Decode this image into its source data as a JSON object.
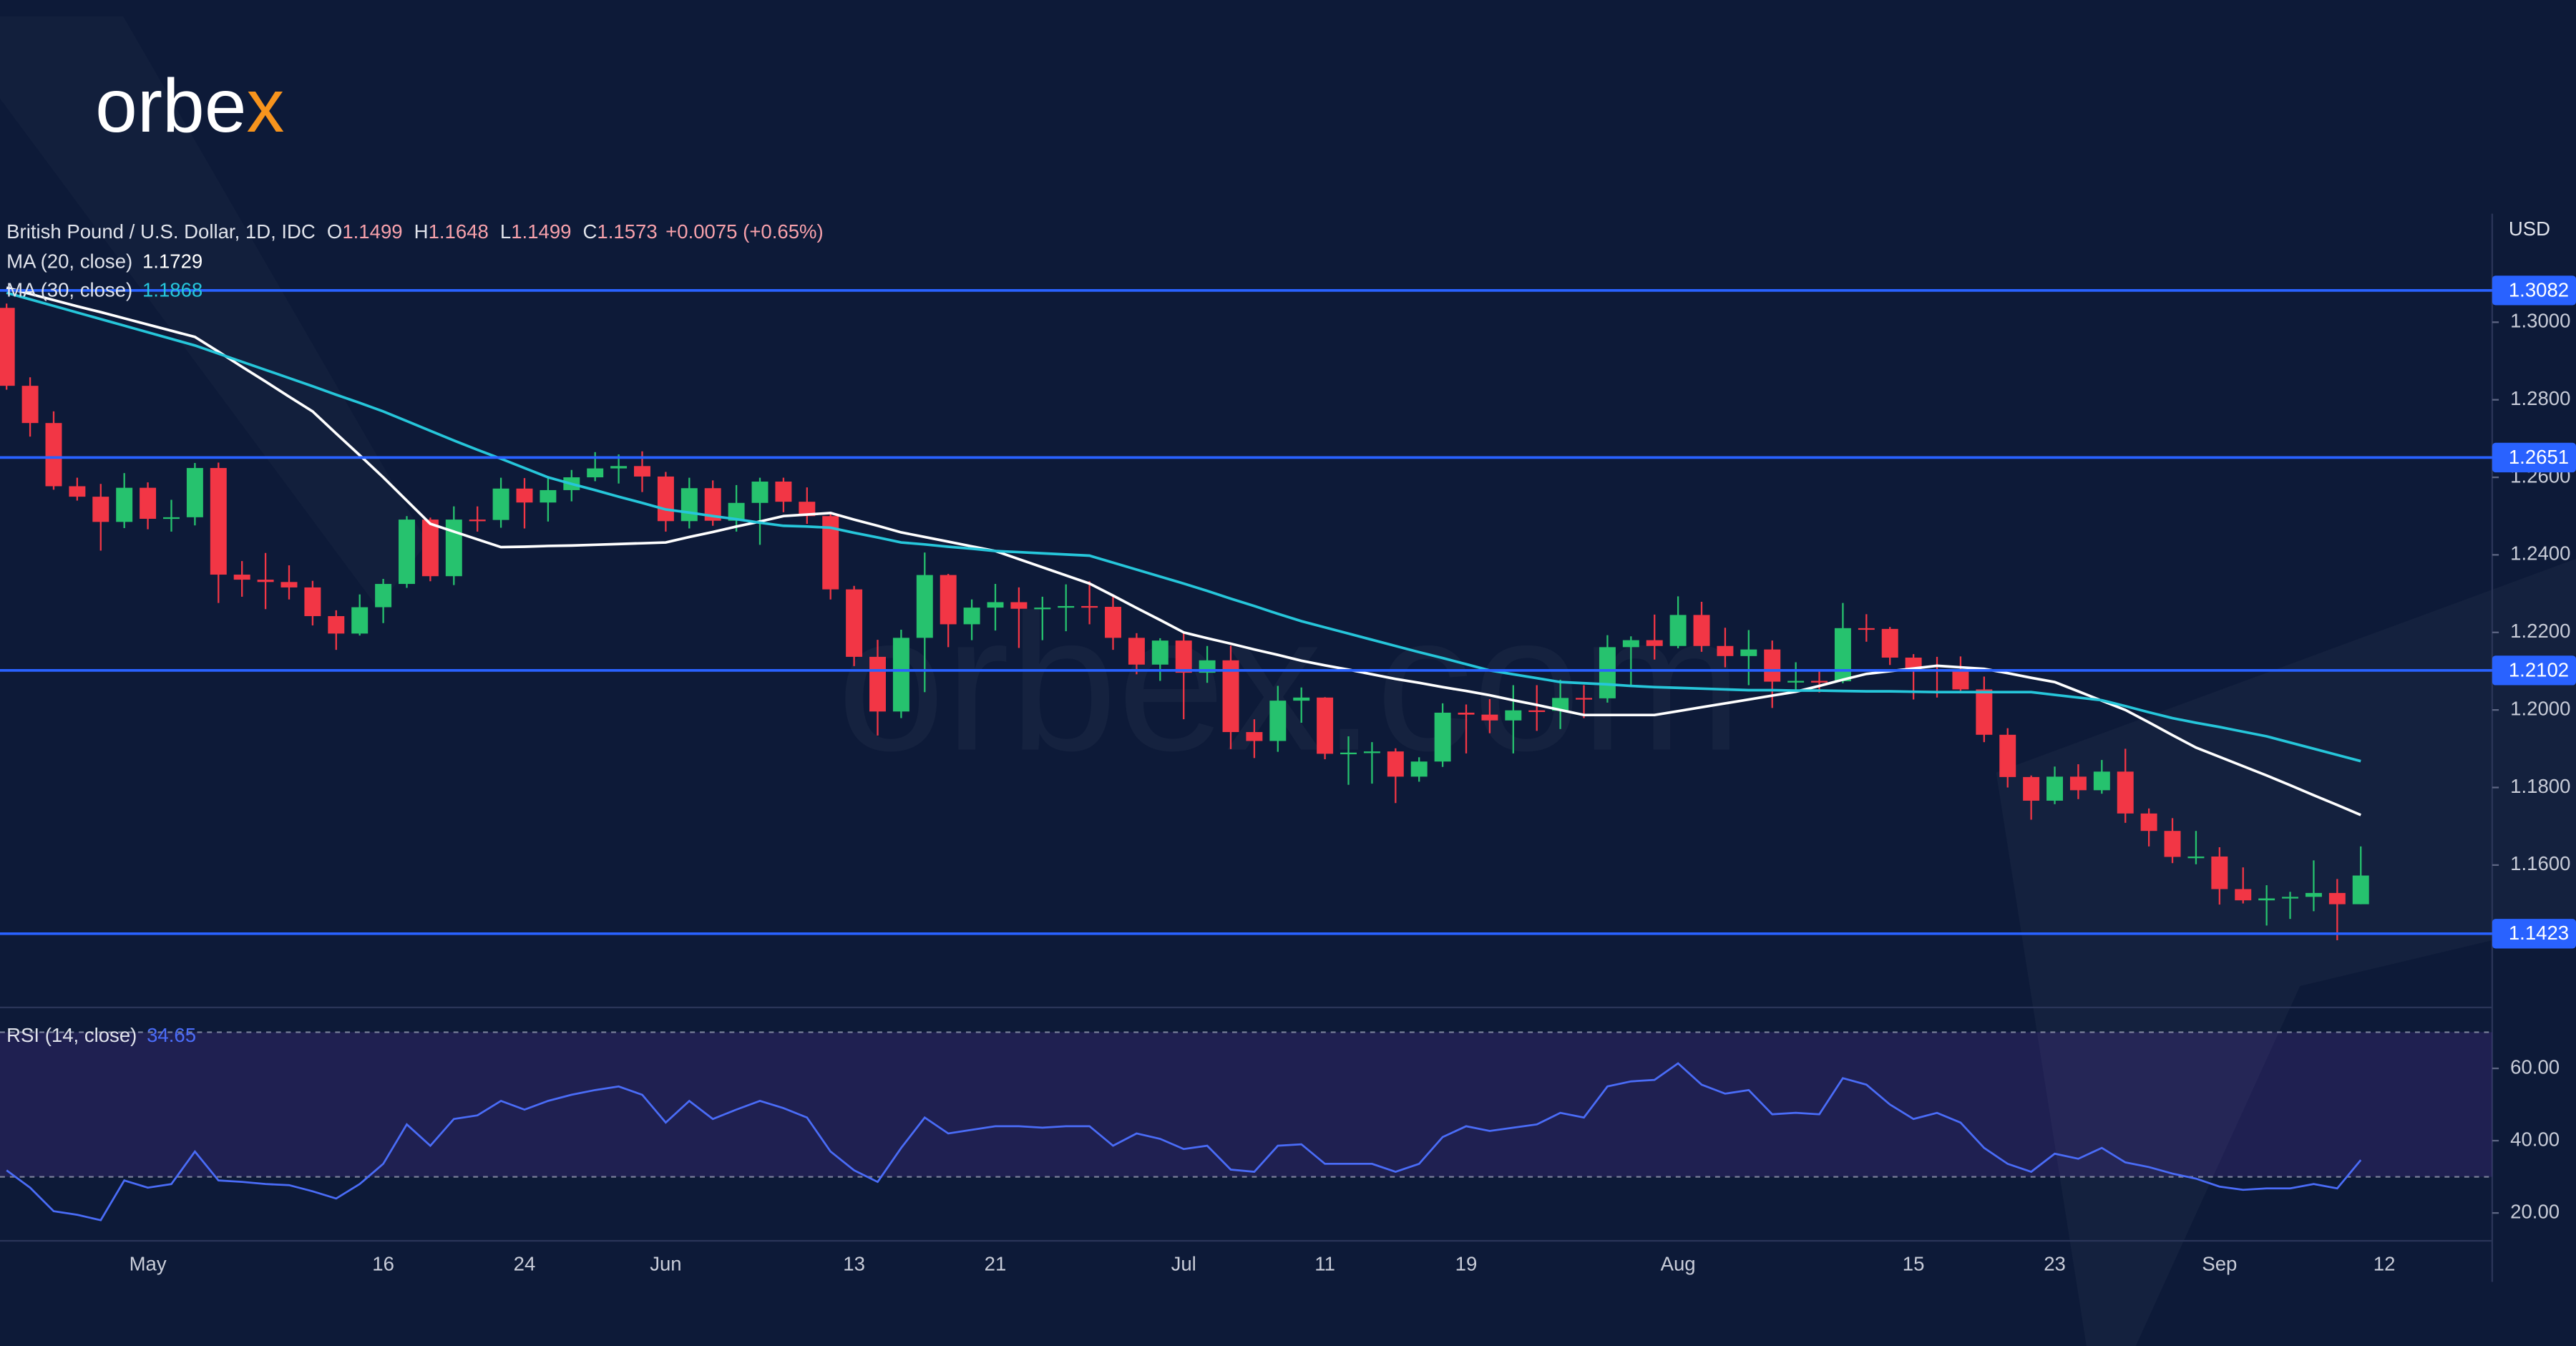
{
  "logo": {
    "text": "orbe",
    "accent": "x"
  },
  "watermark": "orbex.com",
  "chart_data": {
    "type": "candlestick",
    "legend": {
      "symbol": "British Pound / U.S. Dollar, 1D, IDC",
      "ohlc": [
        {
          "label": "O",
          "value": "1.1499"
        },
        {
          "label": "H",
          "value": "1.1648"
        },
        {
          "label": "L",
          "value": "1.1499"
        },
        {
          "label": "C",
          "value": "1.1573"
        }
      ],
      "change": "+0.0075 (+0.65%)"
    },
    "currency": "USD",
    "categories": [
      null,
      null,
      null,
      null,
      null,
      null,
      "May",
      null,
      null,
      null,
      null,
      null,
      null,
      null,
      null,
      null,
      "16",
      null,
      null,
      null,
      null,
      null,
      "24",
      null,
      null,
      null,
      null,
      null,
      "Jun",
      null,
      null,
      null,
      null,
      null,
      null,
      null,
      "13",
      null,
      null,
      null,
      null,
      null,
      "21",
      null,
      null,
      null,
      null,
      null,
      null,
      null,
      "Jul",
      null,
      null,
      null,
      null,
      null,
      "11",
      null,
      null,
      null,
      null,
      null,
      "19",
      null,
      null,
      null,
      null,
      null,
      null,
      null,
      null,
      "Aug",
      null,
      null,
      null,
      null,
      null,
      null,
      null,
      null,
      null,
      "15",
      null,
      null,
      null,
      null,
      null,
      "23",
      null,
      null,
      null,
      null,
      null,
      null,
      "Sep",
      null,
      null,
      null,
      null,
      null,
      null,
      "12"
    ],
    "open": [
      1.3037,
      1.2836,
      1.274,
      1.2577,
      1.255,
      1.2485,
      1.2573,
      1.2493,
      1.2497,
      1.2624,
      1.2349,
      1.2336,
      1.233,
      1.2316,
      1.2242,
      1.2197,
      1.2265,
      1.2325,
      1.2491,
      1.2345,
      1.2491,
      1.249,
      1.2571,
      1.2535,
      1.2567,
      1.26,
      1.2623,
      1.2629,
      1.2602,
      1.2487,
      1.2572,
      1.2488,
      1.2534,
      1.2589,
      1.2537,
      1.25,
      1.2311,
      1.2137,
      1.1996,
      1.2186,
      1.2348,
      1.2221,
      1.2264,
      1.2278,
      1.2261,
      1.2264,
      1.2268,
      1.2266,
      1.2186,
      1.2117,
      1.2179,
      1.2096,
      1.2128,
      1.1943,
      1.192,
      1.2024,
      1.2032,
      1.1887,
      1.189,
      1.1893,
      1.1828,
      1.1867,
      1.1993,
      1.1988,
      1.1973,
      1.1999,
      1.1998,
      1.2031,
      1.203,
      1.2162,
      1.218,
      1.2165,
      1.2245,
      1.2165,
      1.2139,
      1.2156,
      1.2073,
      1.2075,
      1.2074,
      1.2211,
      1.2209,
      1.2135,
      1.2104,
      1.2102,
      1.2053,
      1.1936,
      1.1827,
      1.1766,
      1.1828,
      1.1793,
      1.1841,
      1.1733,
      1.1688,
      1.1621,
      1.1622,
      1.1538,
      1.1509,
      1.1514,
      1.1518,
      1.1528,
      1.1499,
      null
    ],
    "high": [
      1.3048,
      1.2858,
      1.277,
      1.2599,
      1.2583,
      1.2611,
      1.2587,
      1.2542,
      1.2637,
      1.2638,
      1.2384,
      1.2405,
      1.2373,
      1.2333,
      1.2257,
      1.2298,
      1.2338,
      1.25,
      1.2496,
      1.2525,
      1.2525,
      1.2599,
      1.2598,
      1.2599,
      1.2619,
      1.2665,
      1.2659,
      1.2667,
      1.2614,
      1.2599,
      1.2592,
      1.258,
      1.2599,
      1.2599,
      1.2574,
      1.251,
      1.232,
      1.2181,
      1.2207,
      1.2406,
      1.2351,
      1.2285,
      1.2325,
      1.2316,
      1.2292,
      1.2324,
      1.2332,
      1.2292,
      1.2198,
      1.2185,
      1.2197,
      1.2165,
      1.2166,
      1.1976,
      1.2062,
      1.2058,
      1.2033,
      1.1932,
      1.1917,
      1.1901,
      1.1878,
      1.2017,
      1.2014,
      1.2028,
      1.2064,
      1.2064,
      1.2078,
      1.2064,
      1.2193,
      1.219,
      1.2246,
      1.2293,
      1.2279,
      1.2212,
      1.2206,
      1.2179,
      1.2123,
      1.21,
      1.2276,
      1.2247,
      1.2214,
      1.2144,
      1.2137,
      1.2138,
      1.2086,
      1.1953,
      1.1831,
      1.1854,
      1.186,
      1.1871,
      1.19,
      1.1746,
      1.1721,
      1.1688,
      1.1646,
      1.1594,
      1.1548,
      1.1531,
      1.1612,
      1.1564,
      1.1648,
      null
    ],
    "low": [
      1.2826,
      1.2705,
      1.2568,
      1.254,
      1.2411,
      1.2469,
      1.2466,
      1.246,
      1.2476,
      1.2276,
      1.2292,
      1.226,
      1.2285,
      1.2218,
      1.2155,
      1.2192,
      1.2224,
      1.2315,
      1.2332,
      1.2322,
      1.246,
      1.247,
      1.2468,
      1.2486,
      1.2538,
      1.259,
      1.2584,
      1.2562,
      1.246,
      1.2468,
      1.2475,
      1.246,
      1.2426,
      1.251,
      1.248,
      1.2285,
      1.2113,
      1.1934,
      1.1979,
      1.2046,
      1.2162,
      1.218,
      1.2205,
      1.216,
      1.218,
      1.2203,
      1.2221,
      1.2155,
      1.2092,
      1.2075,
      1.1976,
      1.207,
      1.1899,
      1.1876,
      1.1892,
      1.1967,
      1.1873,
      1.1807,
      1.181,
      1.176,
      1.1815,
      1.1853,
      1.1888,
      1.194,
      1.1888,
      1.1946,
      1.1951,
      1.1979,
      1.2019,
      1.2062,
      1.213,
      1.2159,
      1.215,
      1.211,
      1.2064,
      1.2005,
      1.2052,
      1.2045,
      1.2069,
      1.2176,
      1.2116,
      1.2027,
      1.2032,
      1.2043,
      1.1917,
      1.18,
      1.1717,
      1.1757,
      1.177,
      1.1784,
      1.1709,
      1.1648,
      1.1605,
      1.1602,
      1.1498,
      1.1501,
      1.1444,
      1.1461,
      1.1481,
      1.1406,
      1.1499,
      null
    ],
    "close": [
      1.2836,
      1.274,
      1.2577,
      1.255,
      1.2485,
      1.2573,
      1.2493,
      1.2497,
      1.2624,
      1.2349,
      1.2336,
      1.233,
      1.2316,
      1.2242,
      1.2197,
      1.2265,
      1.2325,
      1.2491,
      1.2345,
      1.2491,
      1.249,
      1.2571,
      1.2535,
      1.2567,
      1.26,
      1.2623,
      1.2629,
      1.2602,
      1.2487,
      1.2572,
      1.2488,
      1.2534,
      1.2589,
      1.2537,
      1.25,
      1.2311,
      1.2137,
      1.1996,
      1.2186,
      1.2348,
      1.2221,
      1.2264,
      1.2278,
      1.2261,
      1.2264,
      1.2268,
      1.2266,
      1.2186,
      1.2117,
      1.2179,
      1.2096,
      1.2128,
      1.1943,
      1.192,
      1.2024,
      1.2032,
      1.1887,
      1.189,
      1.1893,
      1.1828,
      1.1867,
      1.1993,
      1.1988,
      1.1973,
      1.1999,
      1.1998,
      1.2031,
      1.203,
      1.2162,
      1.218,
      1.2165,
      1.2245,
      1.2165,
      1.2139,
      1.2156,
      1.2073,
      1.2075,
      1.2074,
      1.2211,
      1.2209,
      1.2135,
      1.2104,
      1.2102,
      1.2053,
      1.1936,
      1.1827,
      1.1766,
      1.1828,
      1.1793,
      1.1841,
      1.1733,
      1.1688,
      1.1621,
      1.1622,
      1.1538,
      1.1509,
      1.1514,
      1.1518,
      1.1528,
      1.1499,
      1.1573,
      null
    ],
    "up_color": "#26c26e",
    "down_color": "#f23645",
    "ylim": [
      1.1237,
      1.328
    ],
    "yticks": [
      {
        "value": 1.16,
        "label": "1.1600"
      },
      {
        "value": 1.18,
        "label": "1.1800"
      },
      {
        "value": 1.2,
        "label": "1.2000"
      },
      {
        "value": 1.22,
        "label": "1.2200"
      },
      {
        "value": 1.24,
        "label": "1.2400"
      },
      {
        "value": 1.26,
        "label": "1.2600"
      },
      {
        "value": 1.28,
        "label": "1.2800"
      },
      {
        "value": 1.3,
        "label": "1.3000"
      }
    ],
    "levels": {
      "color": "#2962ff",
      "values": [
        1.3082,
        1.2651,
        1.2102,
        1.1423
      ]
    },
    "series": [
      {
        "name": "MA (20, close)",
        "color": "#ffffff",
        "last": 1.1729,
        "values": [
          1.3089,
          1.3073,
          1.3057,
          1.3041,
          1.3026,
          1.301,
          1.2994,
          1.2978,
          1.2962,
          1.2924,
          1.2885,
          1.2847,
          1.2808,
          1.277,
          1.2713,
          1.2657,
          1.26,
          1.254,
          1.248,
          1.246,
          1.244,
          1.242,
          1.2421,
          1.2423,
          1.2424,
          1.2426,
          1.2428,
          1.243,
          1.2432,
          1.2446,
          1.2459,
          1.2473,
          1.2486,
          1.25,
          1.2504,
          1.2508,
          1.2491,
          1.2475,
          1.2458,
          1.2446,
          1.2434,
          1.2422,
          1.241,
          1.2389,
          1.2368,
          1.2347,
          1.2326,
          1.2295,
          1.2263,
          1.2232,
          1.22,
          1.2185,
          1.2171,
          1.2156,
          1.2142,
          1.2127,
          1.2115,
          1.2104,
          1.2092,
          1.208,
          1.207,
          1.2059,
          1.2049,
          1.2038,
          1.2025,
          1.2013,
          1.2,
          1.1987,
          1.1987,
          1.1987,
          1.1987,
          1.1997,
          1.2007,
          1.2017,
          1.2027,
          1.2037,
          1.2047,
          1.2062,
          1.2078,
          1.2093,
          1.21,
          1.2107,
          1.2114,
          1.211,
          1.2106,
          1.2095,
          1.2083,
          1.2072,
          1.2048,
          1.2024,
          1.2,
          1.1968,
          1.1935,
          1.1903,
          1.1879,
          1.1855,
          1.1831,
          1.1806,
          1.178,
          1.1755,
          1.1729,
          null
        ]
      },
      {
        "name": "MA (30, close)",
        "color": "#26c6da",
        "last": 1.1868,
        "values": [
          1.3076,
          1.3059,
          1.3042,
          1.3025,
          1.3008,
          1.2991,
          1.2974,
          1.2957,
          1.294,
          1.2919,
          1.2898,
          1.2877,
          1.2856,
          1.2835,
          1.2813,
          1.2792,
          1.277,
          1.2745,
          1.272,
          1.2695,
          1.2671,
          1.2648,
          1.2624,
          1.26,
          1.2583,
          1.2567,
          1.255,
          1.2534,
          1.2517,
          1.2509,
          1.25,
          1.2492,
          1.2483,
          1.2475,
          1.2473,
          1.247,
          1.2457,
          1.2445,
          1.2432,
          1.2427,
          1.2421,
          1.2416,
          1.241,
          1.2407,
          1.2404,
          1.2401,
          1.2398,
          1.238,
          1.2362,
          1.2344,
          1.2326,
          1.2307,
          1.2287,
          1.2268,
          1.2248,
          1.2229,
          1.2213,
          1.2197,
          1.2181,
          1.2165,
          1.2149,
          1.2134,
          1.2118,
          1.2102,
          1.2092,
          1.2082,
          1.2072,
          1.2069,
          1.2066,
          1.2062,
          1.2059,
          1.2057,
          1.2055,
          1.2053,
          1.2051,
          1.2051,
          1.205,
          1.205,
          1.2049,
          1.2048,
          1.2048,
          1.2047,
          1.2046,
          1.2046,
          1.2046,
          1.2046,
          1.2046,
          1.2039,
          1.2032,
          1.2025,
          1.201,
          1.1994,
          1.1979,
          1.1967,
          1.1956,
          1.1944,
          1.1932,
          1.1916,
          1.19,
          1.1884,
          1.1868,
          null
        ]
      }
    ],
    "rsi": {
      "name": "RSI (14, close)",
      "color": "#4a6cf7",
      "last": 34.65,
      "ylim": [
        12.3,
        76.4
      ],
      "yticks": [
        {
          "value": 20,
          "label": "20.00"
        },
        {
          "value": 40,
          "label": "40.00"
        },
        {
          "value": 60,
          "label": "60.00"
        }
      ],
      "bands": [
        30,
        70
      ],
      "values": [
        31.8,
        27,
        20.5,
        19.5,
        18,
        29,
        27,
        28,
        37,
        29,
        28.6,
        28,
        27.7,
        26,
        24,
        28,
        33.6,
        44.5,
        38.6,
        46,
        47,
        51,
        48.6,
        51,
        52.7,
        54,
        55,
        52.7,
        45,
        51,
        46,
        48.6,
        51,
        49,
        46.4,
        37,
        31.8,
        28.6,
        38,
        46.4,
        42,
        43,
        44,
        44,
        43.6,
        44,
        44,
        38.6,
        42,
        40.5,
        37.7,
        38.6,
        32,
        31.4,
        38.6,
        39,
        33.6,
        33.6,
        33.6,
        31.4,
        33.6,
        41,
        44,
        42.7,
        43.6,
        44.5,
        47.7,
        46.4,
        55,
        56.4,
        56.8,
        61.4,
        55.5,
        53,
        54,
        47.3,
        47.7,
        47.3,
        57.3,
        55.5,
        50,
        46,
        47.7,
        45,
        38,
        33.6,
        31.4,
        36.4,
        35,
        38,
        34,
        32.7,
        30.9,
        29.5,
        27.3,
        26.4,
        26.8,
        26.8,
        28,
        26.8,
        34.65,
        null
      ]
    }
  }
}
